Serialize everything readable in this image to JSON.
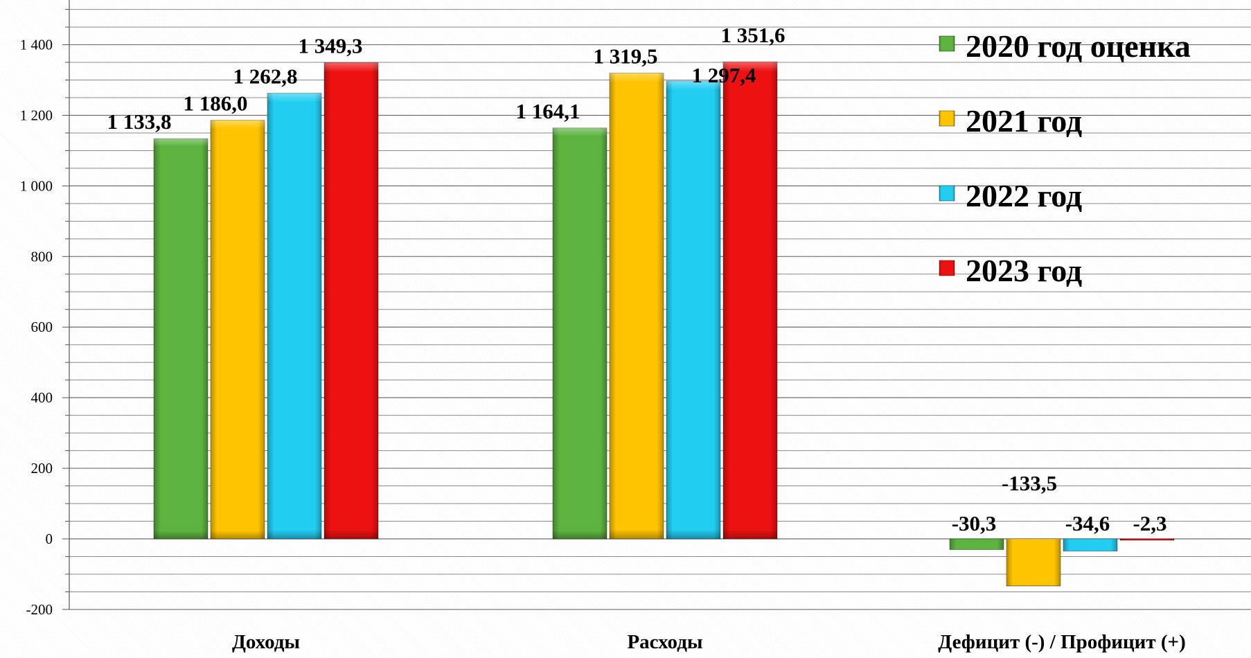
{
  "chart_data": {
    "type": "bar",
    "categories": [
      "Доходы",
      "Расходы",
      "Дефицит (-) / Профицит (+)"
    ],
    "series": [
      {
        "name": "2020 год оценка",
        "color": "#5cb33f",
        "values": [
          1133.8,
          1164.1,
          -30.3
        ],
        "labels": [
          "1 133,8",
          "1 164,1",
          "-30,3"
        ]
      },
      {
        "name": "2021 год",
        "color": "#ffc400",
        "values": [
          1186.0,
          1319.5,
          -133.5
        ],
        "labels": [
          "1 186,0",
          "1 319,5",
          "-133,5"
        ]
      },
      {
        "name": "2022 год",
        "color": "#22cdf2",
        "values": [
          1262.8,
          1297.4,
          -34.6
        ],
        "labels": [
          "1 262,8",
          "1 297,4",
          "-34,6"
        ]
      },
      {
        "name": "2023 год",
        "color": "#ee1111",
        "values": [
          1349.3,
          1351.6,
          -2.3
        ],
        "labels": [
          "1 349,3",
          "1 351,6",
          "-2,3"
        ]
      }
    ],
    "y_ticks": [
      "-200",
      "0",
      "200",
      "400",
      "600",
      "800",
      "1 000",
      "1 200",
      "1 400"
    ],
    "ylim": [
      -200,
      1600
    ],
    "legend_position": "top-right",
    "grid": true
  }
}
